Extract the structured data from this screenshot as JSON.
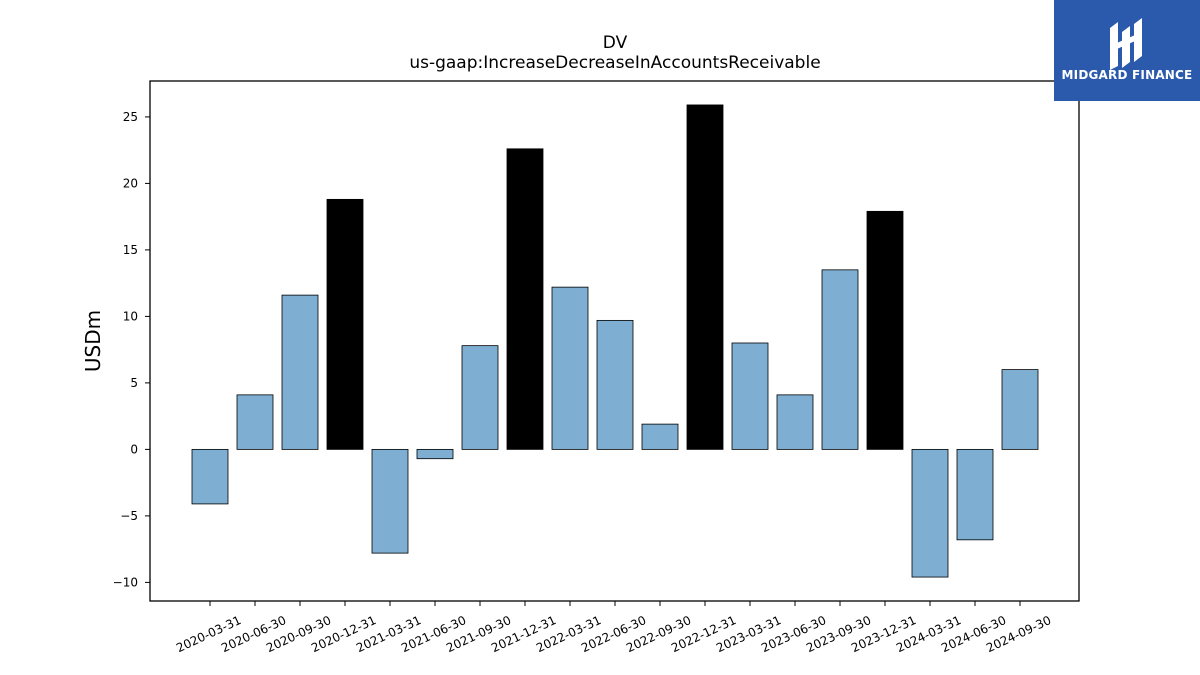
{
  "chart_data": {
    "type": "bar",
    "title": "DV",
    "subtitle": "us-gaap:IncreaseDecreaseInAccountsReceivable",
    "xlabel": "",
    "ylabel": "USDm",
    "ylim": [
      -11.4,
      27.7
    ],
    "yticks": [
      -10,
      -5,
      0,
      5,
      10,
      15,
      20,
      25
    ],
    "ytick_labels": [
      "−10",
      "−5",
      "0",
      "5",
      "10",
      "15",
      "20",
      "25"
    ],
    "grid": false,
    "categories": [
      "2020-03-31",
      "2020-06-30",
      "2020-09-30",
      "2020-12-31",
      "2021-03-31",
      "2021-06-30",
      "2021-09-30",
      "2021-12-31",
      "2022-03-31",
      "2022-06-30",
      "2022-09-30",
      "2022-12-31",
      "2023-03-31",
      "2023-06-30",
      "2023-09-30",
      "2023-12-31",
      "2024-03-31",
      "2024-06-30",
      "2024-09-30"
    ],
    "values": [
      -4.1,
      4.1,
      11.6,
      18.8,
      -7.8,
      -0.7,
      7.8,
      22.6,
      12.2,
      9.7,
      1.9,
      25.9,
      8.0,
      4.1,
      13.5,
      17.9,
      -9.6,
      -6.8,
      6.0
    ],
    "colors": {
      "quarter": "#7eafd3",
      "year_end": "#000000",
      "edge": "#000000"
    },
    "bar_kind": [
      "q",
      "q",
      "q",
      "y",
      "q",
      "q",
      "q",
      "y",
      "q",
      "q",
      "q",
      "y",
      "q",
      "q",
      "q",
      "y",
      "q",
      "q",
      "q"
    ]
  },
  "logo": {
    "text": "MIDGARD FINANCE",
    "background": "#2b5aad"
  }
}
